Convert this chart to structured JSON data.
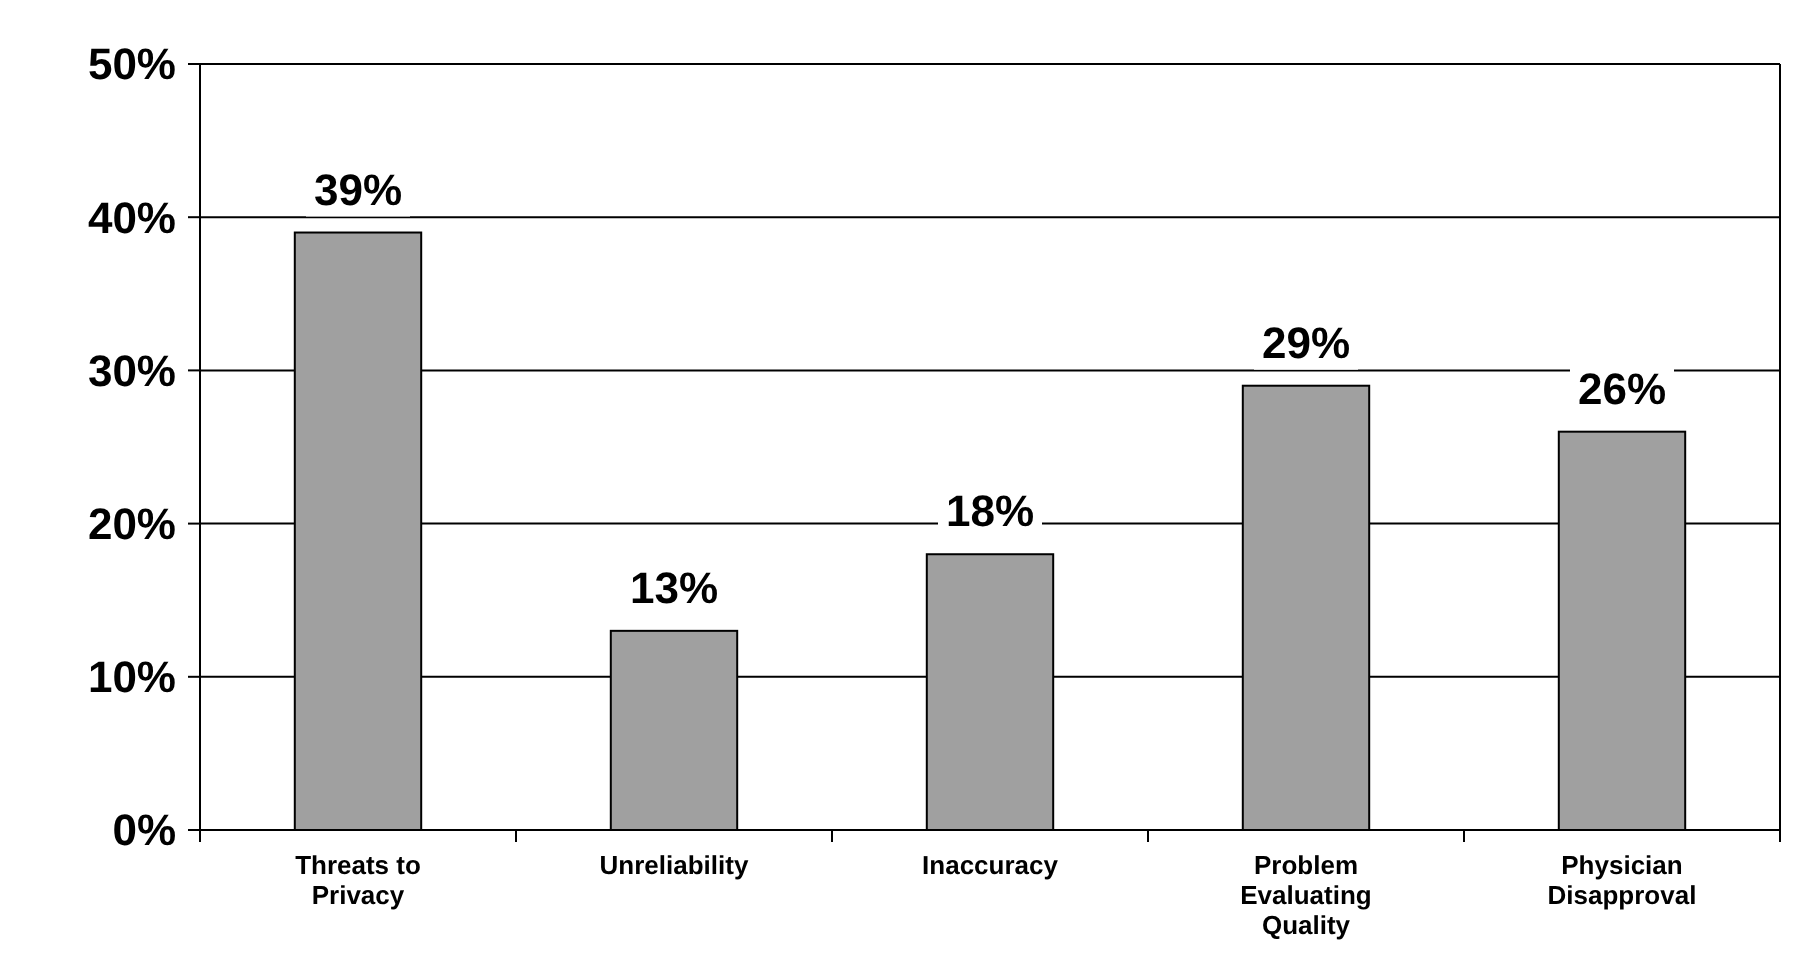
{
  "chart_data": {
    "type": "bar",
    "categories": [
      "Threats to Privacy",
      "Unreliability",
      "Inaccuracy",
      "Problem Evaluating Quality",
      "Physician Disapproval"
    ],
    "values": [
      39,
      13,
      18,
      29,
      26
    ],
    "value_labels": [
      "39%",
      "13%",
      "18%",
      "29%",
      "26%"
    ],
    "color": "#a0a0a0",
    "ylim": [
      0,
      50
    ],
    "yticks": [
      {
        "value": 0,
        "label": "0%"
      },
      {
        "value": 10,
        "label": "10%"
      },
      {
        "value": 20,
        "label": "20%"
      },
      {
        "value": 30,
        "label": "30%"
      },
      {
        "value": 40,
        "label": "40%"
      },
      {
        "value": 50,
        "label": "50%"
      }
    ],
    "grid": "y"
  }
}
